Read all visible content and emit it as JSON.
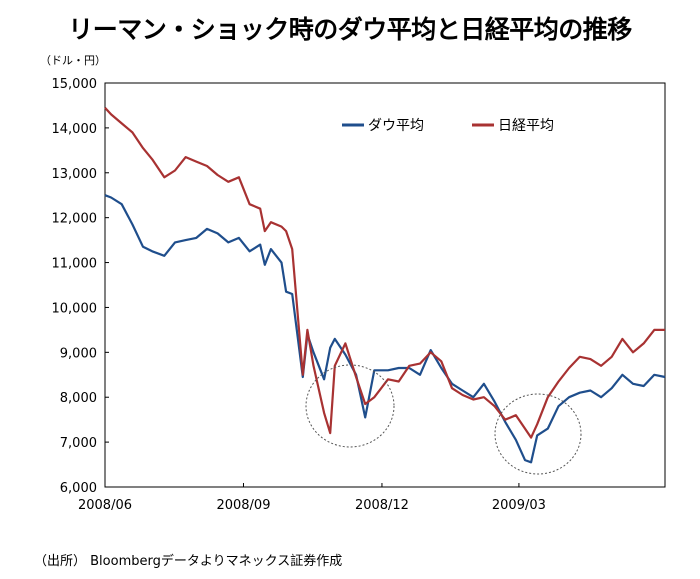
{
  "chart_data": {
    "type": "line",
    "title": "リーマン・ショック時のダウ平均と日経平均の推移",
    "unit_label": "（ドル・円）",
    "source_note": "（出所） Bloombergデータよりマネックス証券作成",
    "ylim": [
      6000,
      15000
    ],
    "yticks": [
      "6,000",
      "7,000",
      "8,000",
      "9,000",
      "10,000",
      "11,000",
      "12,000",
      "13,000",
      "14,000",
      "15,000"
    ],
    "ytick_values": [
      6000,
      7000,
      8000,
      9000,
      10000,
      11000,
      12000,
      13000,
      14000,
      15000
    ],
    "xlim": [
      "2008/06/02",
      "2009/06/05"
    ],
    "xticks": [
      "2008/06",
      "2008/09",
      "2008/12",
      "2009/03"
    ],
    "xtick_dates": [
      "2008-06-02",
      "2008-09-01",
      "2008-12-01",
      "2009-03-01"
    ],
    "grid": false,
    "legend_position": "top-right",
    "annotations": [
      "circle around 2008/10–2008/11 lows",
      "circle around 2009/03 lows"
    ],
    "series": [
      {
        "name": "ダウ平均",
        "color": "#1f4e8c",
        "x": [
          "2008-06-02",
          "2008-06-06",
          "2008-06-13",
          "2008-06-20",
          "2008-06-27",
          "2008-07-03",
          "2008-07-11",
          "2008-07-18",
          "2008-07-25",
          "2008-08-01",
          "2008-08-08",
          "2008-08-15",
          "2008-08-22",
          "2008-08-29",
          "2008-09-05",
          "2008-09-12",
          "2008-09-15",
          "2008-09-19",
          "2008-09-26",
          "2008-09-29",
          "2008-10-03",
          "2008-10-10",
          "2008-10-13",
          "2008-10-17",
          "2008-10-24",
          "2008-10-28",
          "2008-10-31",
          "2008-11-07",
          "2008-11-14",
          "2008-11-20",
          "2008-11-26",
          "2008-12-05",
          "2008-12-12",
          "2008-12-19",
          "2008-12-26",
          "2009-01-02",
          "2009-01-09",
          "2009-01-16",
          "2009-01-23",
          "2009-01-30",
          "2009-02-06",
          "2009-02-13",
          "2009-02-20",
          "2009-02-27",
          "2009-03-05",
          "2009-03-09",
          "2009-03-13",
          "2009-03-20",
          "2009-03-27",
          "2009-04-03",
          "2009-04-10",
          "2009-04-17",
          "2009-04-24",
          "2009-05-01",
          "2009-05-08",
          "2009-05-15",
          "2009-05-22",
          "2009-05-29",
          "2009-06-05"
        ],
        "values": [
          12500,
          12450,
          12300,
          11850,
          11350,
          11250,
          11150,
          11450,
          11500,
          11550,
          11750,
          11650,
          11450,
          11550,
          11250,
          11400,
          10950,
          11300,
          11000,
          10350,
          10300,
          8450,
          9400,
          9000,
          8400,
          9100,
          9300,
          8950,
          8500,
          7550,
          8600,
          8600,
          8650,
          8650,
          8500,
          9050,
          8650,
          8300,
          8150,
          8000,
          8300,
          7900,
          7450,
          7050,
          6600,
          6550,
          7150,
          7300,
          7800,
          8000,
          8100,
          8150,
          8000,
          8200,
          8500,
          8300,
          8250,
          8500,
          8450
        ]
      },
      {
        "name": "日経平均",
        "color": "#a83232",
        "x": [
          "2008-06-02",
          "2008-06-06",
          "2008-06-13",
          "2008-06-20",
          "2008-06-27",
          "2008-07-03",
          "2008-07-11",
          "2008-07-18",
          "2008-07-25",
          "2008-08-01",
          "2008-08-08",
          "2008-08-15",
          "2008-08-22",
          "2008-08-29",
          "2008-09-05",
          "2008-09-12",
          "2008-09-15",
          "2008-09-19",
          "2008-09-26",
          "2008-09-29",
          "2008-10-03",
          "2008-10-10",
          "2008-10-13",
          "2008-10-17",
          "2008-10-24",
          "2008-10-28",
          "2008-10-31",
          "2008-11-07",
          "2008-11-14",
          "2008-11-20",
          "2008-11-26",
          "2008-12-05",
          "2008-12-12",
          "2008-12-19",
          "2008-12-26",
          "2009-01-02",
          "2009-01-09",
          "2009-01-16",
          "2009-01-23",
          "2009-01-30",
          "2009-02-06",
          "2009-02-13",
          "2009-02-20",
          "2009-02-27",
          "2009-03-05",
          "2009-03-09",
          "2009-03-13",
          "2009-03-20",
          "2009-03-27",
          "2009-04-03",
          "2009-04-10",
          "2009-04-17",
          "2009-04-24",
          "2009-05-01",
          "2009-05-08",
          "2009-05-15",
          "2009-05-22",
          "2009-05-29",
          "2009-06-05"
        ],
        "values": [
          14450,
          14300,
          14100,
          13900,
          13550,
          13300,
          12900,
          13050,
          13350,
          13250,
          13150,
          12950,
          12800,
          12900,
          12300,
          12200,
          11700,
          11900,
          11800,
          11700,
          11300,
          8500,
          9500,
          8700,
          7650,
          7200,
          8700,
          9200,
          8450,
          7850,
          8000,
          8400,
          8350,
          8700,
          8750,
          9000,
          8800,
          8200,
          8050,
          7950,
          8000,
          7800,
          7500,
          7600,
          7300,
          7100,
          7400,
          8000,
          8350,
          8650,
          8900,
          8850,
          8700,
          8900,
          9300,
          9000,
          9200,
          9500,
          9500
        ]
      }
    ]
  }
}
